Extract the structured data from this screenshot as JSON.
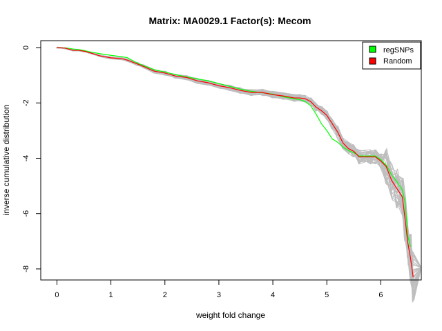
{
  "chart_data": {
    "type": "line",
    "title": "Matrix: MA0029.1 Factor(s): Mecom",
    "xlabel": "weight fold change",
    "ylabel": "inverse cumulative distribution",
    "xlim": [
      -0.3,
      6.75
    ],
    "ylim": [
      -8.4,
      0.25
    ],
    "xticks": [
      "0",
      "1",
      "2",
      "3",
      "4",
      "5",
      "6"
    ],
    "yticks": [
      "0",
      "-2",
      "-4",
      "-6",
      "-8"
    ],
    "legend_position": "top-right",
    "background_color": "#bebebe",
    "series": [
      {
        "name": "regSNPs",
        "color": "#00ff00",
        "x": [
          0,
          0.2,
          0.3,
          0.4,
          0.5,
          0.6,
          0.8,
          1.0,
          1.2,
          1.3,
          1.5,
          1.6,
          1.8,
          2.0,
          2.2,
          2.4,
          2.6,
          2.8,
          3.0,
          3.2,
          3.4,
          3.6,
          3.8,
          4.0,
          4.2,
          4.4,
          4.5,
          4.6,
          4.7,
          4.8,
          4.9,
          5.0,
          5.1,
          5.2,
          5.3,
          5.4,
          5.5,
          5.6,
          5.8,
          5.9,
          6.0,
          6.1,
          6.2,
          6.3,
          6.4,
          6.45,
          6.5,
          6.55
        ],
        "y": [
          0,
          -0.02,
          -0.05,
          -0.07,
          -0.1,
          -0.15,
          -0.22,
          -0.28,
          -0.33,
          -0.36,
          -0.57,
          -0.65,
          -0.8,
          -0.88,
          -0.98,
          -1.06,
          -1.13,
          -1.2,
          -1.3,
          -1.4,
          -1.5,
          -1.58,
          -1.63,
          -1.68,
          -1.78,
          -1.85,
          -1.88,
          -1.95,
          -2.1,
          -2.4,
          -2.75,
          -3.0,
          -3.3,
          -3.42,
          -3.6,
          -3.72,
          -3.8,
          -3.92,
          -3.92,
          -3.92,
          -4.05,
          -4.25,
          -4.6,
          -4.85,
          -5.15,
          -5.6,
          -6.8,
          -7.2
        ]
      },
      {
        "name": "Random",
        "color": "#ff0000",
        "x": [
          0,
          0.15,
          0.3,
          0.4,
          0.5,
          0.6,
          0.8,
          1.0,
          1.2,
          1.3,
          1.5,
          1.6,
          1.8,
          2.0,
          2.2,
          2.4,
          2.6,
          2.8,
          3.0,
          3.2,
          3.4,
          3.6,
          3.8,
          4.0,
          4.2,
          4.4,
          4.5,
          4.6,
          4.7,
          4.8,
          4.9,
          5.0,
          5.1,
          5.2,
          5.3,
          5.4,
          5.5,
          5.6,
          5.8,
          5.9,
          6.0,
          6.1,
          6.2,
          6.3,
          6.4,
          6.45,
          6.5,
          6.55,
          6.6
        ],
        "y": [
          0,
          -0.02,
          -0.1,
          -0.1,
          -0.13,
          -0.18,
          -0.3,
          -0.37,
          -0.4,
          -0.45,
          -0.6,
          -0.68,
          -0.85,
          -0.92,
          -1.03,
          -1.08,
          -1.2,
          -1.27,
          -1.38,
          -1.45,
          -1.55,
          -1.62,
          -1.62,
          -1.7,
          -1.75,
          -1.82,
          -1.82,
          -1.85,
          -1.95,
          -2.15,
          -2.28,
          -2.45,
          -2.75,
          -3.05,
          -3.45,
          -3.65,
          -3.75,
          -3.95,
          -3.95,
          -3.95,
          -4.1,
          -4.3,
          -4.8,
          -5.1,
          -5.4,
          -6.2,
          -7.05,
          -7.6,
          -8.3
        ]
      }
    ]
  }
}
